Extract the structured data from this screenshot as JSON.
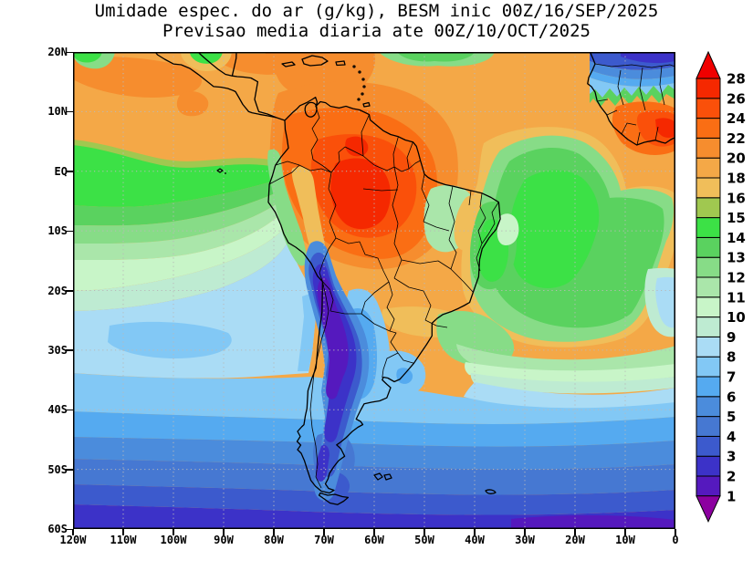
{
  "header": {
    "title": "Umidade espec. do ar (g/kg), BESM inic 00Z/16/SEP/2025",
    "subtitle": "Previsao media diaria ate 00Z/10/OCT/2025"
  },
  "axes": {
    "lat_labels": [
      "20N",
      "10N",
      "EQ",
      "10S",
      "20S",
      "30S",
      "40S",
      "50S",
      "60S"
    ],
    "lon_labels": [
      "120W",
      "110W",
      "100W",
      "90W",
      "80W",
      "70W",
      "60W",
      "50W",
      "40W",
      "30W",
      "20W",
      "10W",
      "0"
    ]
  },
  "colorbar": {
    "levels": [
      1,
      2,
      3,
      4,
      5,
      6,
      7,
      8,
      9,
      10,
      11,
      12,
      13,
      14,
      15,
      16,
      18,
      20,
      22,
      24,
      26,
      28
    ]
  },
  "palette": {
    "lt1": "#8C00A0",
    "1-2": "#5519BE",
    "2-3": "#3C32C8",
    "3-4": "#3C5ACD",
    "4-5": "#4678D2",
    "5-6": "#4B8CDC",
    "6-7": "#55AAF0",
    "7-8": "#82C8F5",
    "8-9": "#AADCF5",
    "9-10": "#BEEBD2",
    "10-11": "#C8F5C8",
    "11-12": "#AAE6AA",
    "12-13": "#87DC87",
    "13-14": "#5AD25F",
    "14-15": "#3CE146",
    "15-16": "#A0C850",
    "16-18": "#F0BE5A",
    "18-20": "#F4A847",
    "20-22": "#F68D2E",
    "22-24": "#FA6E14",
    "24-26": "#FA500A",
    "26-28": "#F52800",
    "gt28": "#F00000"
  },
  "chart_data": {
    "type": "heatmap",
    "title": "Umidade espec. do ar (g/kg), BESM inic 00Z/16/SEP/2025",
    "subtitle": "Previsao media diaria ate 00Z/10/OCT/2025",
    "units": "g/kg",
    "legend_position": "right",
    "grid": "dotted",
    "lat": [
      "20N",
      "10N",
      "EQ",
      "10S",
      "20S",
      "30S",
      "40S",
      "50S",
      "60S"
    ],
    "lon": [
      "120W",
      "110W",
      "100W",
      "90W",
      "80W",
      "70W",
      "60W",
      "50W",
      "40W",
      "30W",
      "20W",
      "10W",
      "0"
    ],
    "values": [
      [
        18,
        19,
        18,
        18,
        19,
        20,
        20,
        18,
        18,
        18,
        16,
        4,
        2
      ],
      [
        19,
        18,
        18,
        19,
        20,
        21,
        20,
        19,
        18,
        18,
        18,
        19,
        22
      ],
      [
        16,
        15,
        14,
        14,
        15,
        22,
        25,
        20,
        16,
        14,
        14,
        15,
        17
      ],
      [
        13,
        12,
        12,
        11,
        11,
        20,
        21,
        18,
        14,
        13,
        14,
        14,
        13
      ],
      [
        11,
        10,
        10,
        9,
        9,
        3,
        8,
        17,
        12,
        13,
        12,
        10,
        9
      ],
      [
        9,
        9,
        8,
        8,
        8,
        2,
        7,
        9,
        11,
        10,
        9,
        8,
        8
      ],
      [
        7,
        7,
        7,
        7,
        7,
        3,
        5,
        7,
        7,
        7,
        7,
        6,
        6
      ],
      [
        5,
        5,
        5,
        5,
        5,
        3,
        4,
        5,
        5,
        5,
        4,
        4,
        4
      ],
      [
        3,
        3,
        3,
        3,
        3,
        3,
        3,
        3,
        3,
        3,
        2,
        2,
        2
      ]
    ],
    "colorbar_levels": [
      1,
      2,
      3,
      4,
      5,
      6,
      7,
      8,
      9,
      10,
      11,
      12,
      13,
      14,
      15,
      16,
      18,
      20,
      22,
      24,
      26,
      28
    ]
  }
}
